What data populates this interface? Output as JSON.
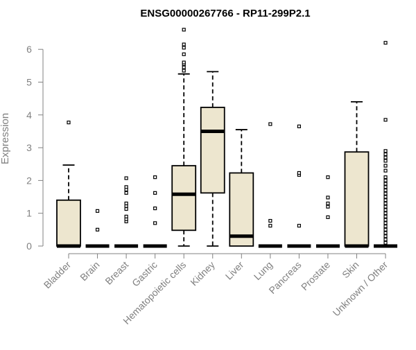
{
  "chart_data": {
    "type": "box",
    "title": "ENSG00000267766 - RP11-299P2.1",
    "xlabel": "",
    "ylabel": "Expression",
    "ylim": [
      0,
      6.6
    ],
    "yticks": [
      0,
      1,
      2,
      3,
      4,
      5,
      6
    ],
    "grid": false,
    "legend": "none",
    "box_fill": "#ede6cf",
    "line_color": "#000000",
    "axis_color": "#808080",
    "categories": [
      "Bladder",
      "Brain",
      "Breast",
      "Gastric",
      "Hematopoietic cells",
      "Kidney",
      "Liver",
      "Lung",
      "Pancreas",
      "Prostate",
      "Skin",
      "Unknown / Other"
    ],
    "boxes": [
      {
        "category": "Bladder",
        "whisker_low": 0,
        "q1": 0,
        "median": 0,
        "q3": 1.4,
        "whisker_high": 2.47,
        "outliers": [
          3.77
        ]
      },
      {
        "category": "Brain",
        "whisker_low": 0,
        "q1": 0,
        "median": 0,
        "q3": 0,
        "whisker_high": 0,
        "outliers": [
          0.5,
          1.07
        ]
      },
      {
        "category": "Breast",
        "whisker_low": 0,
        "q1": 0,
        "median": 0,
        "q3": 0,
        "whisker_high": 0,
        "outliers": [
          0.75,
          0.82,
          0.9,
          1.13,
          1.22,
          1.3,
          1.62,
          1.72,
          1.8,
          2.07
        ]
      },
      {
        "category": "Gastric",
        "whisker_low": 0,
        "q1": 0,
        "median": 0,
        "q3": 0,
        "whisker_high": 0,
        "outliers": [
          0.7,
          1.15,
          1.62,
          2.1
        ]
      },
      {
        "category": "Hematopoietic cells",
        "whisker_low": 0,
        "q1": 0.48,
        "median": 1.58,
        "q3": 2.45,
        "whisker_high": 5.25,
        "outliers": [
          5.35,
          5.45,
          5.55,
          5.6,
          5.85,
          6.05,
          6.15,
          6.6
        ]
      },
      {
        "category": "Kidney",
        "whisker_low": 0,
        "q1": 1.62,
        "median": 3.5,
        "q3": 4.23,
        "whisker_high": 5.32,
        "outliers": []
      },
      {
        "category": "Liver",
        "whisker_low": 0,
        "q1": 0,
        "median": 0.3,
        "q3": 2.23,
        "whisker_high": 3.55,
        "outliers": []
      },
      {
        "category": "Lung",
        "whisker_low": 0,
        "q1": 0,
        "median": 0,
        "q3": 0,
        "whisker_high": 0,
        "outliers": [
          0.62,
          0.77,
          3.72
        ]
      },
      {
        "category": "Pancreas",
        "whisker_low": 0,
        "q1": 0,
        "median": 0,
        "q3": 0,
        "whisker_high": 0,
        "outliers": [
          0.62,
          2.17,
          2.23,
          3.65
        ]
      },
      {
        "category": "Prostate",
        "whisker_low": 0,
        "q1": 0,
        "median": 0,
        "q3": 0,
        "whisker_high": 0,
        "outliers": [
          0.88,
          1.2,
          1.3,
          1.48,
          2.1
        ]
      },
      {
        "category": "Skin",
        "whisker_low": 0,
        "q1": 0,
        "median": 0,
        "q3": 2.87,
        "whisker_high": 4.4,
        "outliers": []
      },
      {
        "category": "Unknown / Other",
        "whisker_low": 0,
        "q1": 0,
        "median": 0,
        "q3": 0,
        "whisker_high": 0,
        "outliers": [
          0.1,
          0.2,
          0.3,
          0.4,
          0.5,
          0.6,
          0.7,
          0.8,
          0.9,
          1.0,
          1.1,
          1.2,
          1.3,
          1.4,
          1.5,
          1.6,
          1.7,
          1.8,
          1.9,
          2.0,
          2.1,
          2.3,
          2.45,
          2.6,
          2.7,
          2.8,
          2.9,
          3.85,
          6.2
        ]
      }
    ]
  }
}
